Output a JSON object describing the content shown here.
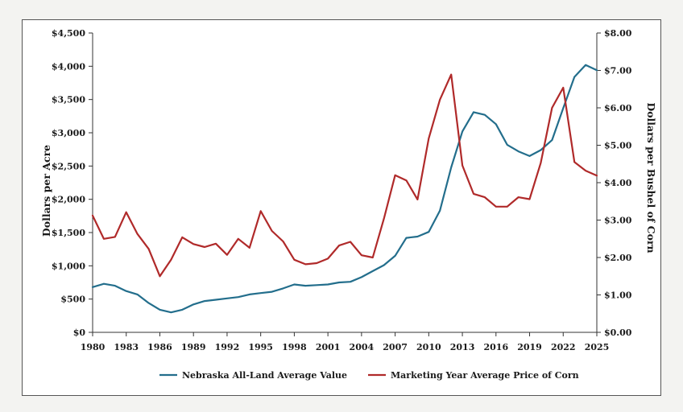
{
  "chart_data": {
    "type": "line",
    "title": "",
    "xlabel": "",
    "ylabel_left": "Dollars per Acre",
    "ylabel_right": "Dollars per Bushel of Corn",
    "ylim_left": [
      0,
      4500
    ],
    "ylim_right": [
      0,
      8
    ],
    "xlim": [
      1980,
      2025
    ],
    "x_ticks": [
      "1980",
      "1983",
      "1986",
      "1989",
      "1992",
      "1995",
      "1998",
      "2001",
      "2004",
      "2007",
      "2010",
      "2013",
      "2016",
      "2019",
      "2022",
      "2025"
    ],
    "y_left_ticks": [
      "$0",
      "$500",
      "$1,000",
      "$1,500",
      "$2,000",
      "$2,500",
      "$3,000",
      "$3,500",
      "$4,000",
      "$4,500"
    ],
    "y_right_ticks": [
      "$0.00",
      "$1.00",
      "$2.00",
      "$3.00",
      "$4.00",
      "$5.00",
      "$6.00",
      "$7.00",
      "$8.00"
    ],
    "grid": false,
    "legend_position": "bottom",
    "x": [
      1980,
      1981,
      1982,
      1983,
      1984,
      1985,
      1986,
      1987,
      1988,
      1989,
      1990,
      1991,
      1992,
      1993,
      1994,
      1995,
      1996,
      1997,
      1998,
      1999,
      2000,
      2001,
      2002,
      2003,
      2004,
      2005,
      2006,
      2007,
      2008,
      2009,
      2010,
      2011,
      2012,
      2013,
      2014,
      2015,
      2016,
      2017,
      2018,
      2019,
      2020,
      2021,
      2022,
      2023,
      2024,
      2025
    ],
    "series": [
      {
        "name": "Nebraska All-Land Average Value",
        "axis": "left",
        "color": "#236e8c",
        "values": [
          680,
          730,
          700,
          620,
          570,
          440,
          340,
          300,
          340,
          420,
          470,
          490,
          510,
          530,
          570,
          590,
          610,
          660,
          720,
          700,
          710,
          720,
          750,
          760,
          830,
          920,
          1010,
          1150,
          1420,
          1440,
          1510,
          1830,
          2480,
          3020,
          3310,
          3270,
          3130,
          2820,
          2720,
          2650,
          2740,
          2890,
          3370,
          3840,
          4020,
          3940
        ]
      },
      {
        "name": "Marketing Year Average Price of Corn",
        "axis": "right",
        "color": "#b02a2a",
        "values": [
          3.12,
          2.5,
          2.55,
          3.21,
          2.63,
          2.23,
          1.5,
          1.94,
          2.54,
          2.36,
          2.28,
          2.37,
          2.07,
          2.5,
          2.26,
          3.24,
          2.71,
          2.43,
          1.94,
          1.82,
          1.85,
          1.97,
          2.32,
          2.42,
          2.06,
          2.0,
          3.04,
          4.2,
          4.06,
          3.55,
          5.18,
          6.22,
          6.89,
          4.46,
          3.7,
          3.61,
          3.36,
          3.36,
          3.61,
          3.56,
          4.53,
          6.0,
          6.54,
          4.55,
          4.32,
          4.19
        ]
      }
    ]
  }
}
